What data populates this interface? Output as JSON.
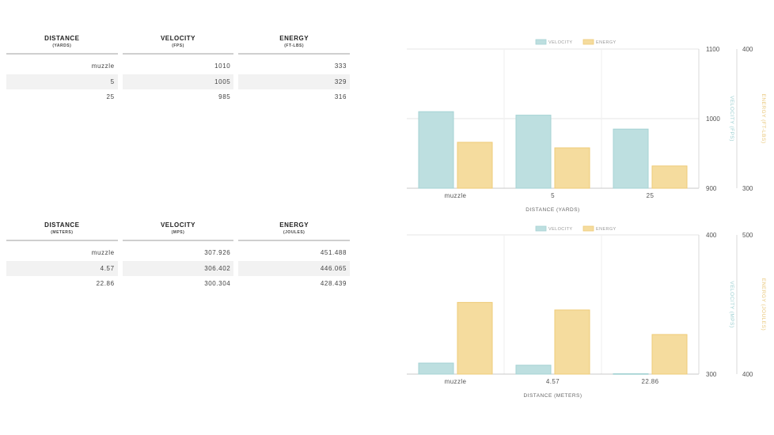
{
  "tables": [
    {
      "headers": [
        {
          "title": "DISTANCE",
          "unit": "(YARDS)"
        },
        {
          "title": "VELOCITY",
          "unit": "(FPS)"
        },
        {
          "title": "ENERGY",
          "unit": "(FT-LBS)"
        }
      ],
      "rows": [
        [
          "muzzle",
          "1010",
          "333"
        ],
        [
          "5",
          "1005",
          "329"
        ],
        [
          "25",
          "985",
          "316"
        ]
      ]
    },
    {
      "headers": [
        {
          "title": "DISTANCE",
          "unit": "(METERS)"
        },
        {
          "title": "VELOCITY",
          "unit": "(MPS)"
        },
        {
          "title": "ENERGY",
          "unit": "(JOULES)"
        }
      ],
      "rows": [
        [
          "muzzle",
          "307.926",
          "451.488"
        ],
        [
          "4.57",
          "306.402",
          "446.065"
        ],
        [
          "22.86",
          "300.304",
          "428.439"
        ]
      ]
    }
  ],
  "chart_data": [
    {
      "type": "bar",
      "categories": [
        "muzzle",
        "5",
        "25"
      ],
      "series": [
        {
          "name": "VELOCITY",
          "values": [
            1010,
            1005,
            985
          ],
          "color": "#bddfe0",
          "border": "#a6d3d4",
          "axis": "left"
        },
        {
          "name": "ENERGY",
          "values": [
            333,
            329,
            316
          ],
          "color": "#f5dc9e",
          "border": "#eecb78",
          "axis": "right"
        }
      ],
      "xlabel": "DISTANCE (YARDS)",
      "ylabel_left": "VELOCITY (FPS)",
      "ylabel_right": "ENERGY (FT-LBS)",
      "ylim_left": [
        900,
        1100
      ],
      "ylim_right": [
        300,
        400
      ],
      "yticks_left": [
        900,
        1000,
        1100
      ],
      "yticks_right": [
        300,
        400
      ],
      "ylabel_left_color": "#9ccfd1",
      "ylabel_right_color": "#e9c77a",
      "legend_position": "top-center",
      "grid": true
    },
    {
      "type": "bar",
      "categories": [
        "muzzle",
        "4.57",
        "22.86"
      ],
      "series": [
        {
          "name": "VELOCITY",
          "values": [
            307.926,
            306.402,
            300.304
          ],
          "color": "#bddfe0",
          "border": "#a6d3d4",
          "axis": "left"
        },
        {
          "name": "ENERGY",
          "values": [
            451.488,
            446.065,
            428.439
          ],
          "color": "#f5dc9e",
          "border": "#eecb78",
          "axis": "right"
        }
      ],
      "xlabel": "DISTANCE (METERS)",
      "ylabel_left": "VELOCITY (MPS)",
      "ylabel_right": "ENERGY (JOULES)",
      "ylim_left": [
        300,
        400
      ],
      "ylim_right": [
        400,
        500
      ],
      "yticks_left": [
        300,
        400
      ],
      "yticks_right": [
        400,
        500
      ],
      "ylabel_left_color": "#9ccfd1",
      "ylabel_right_color": "#e9c77a",
      "legend_position": "top-center",
      "grid": true
    }
  ]
}
